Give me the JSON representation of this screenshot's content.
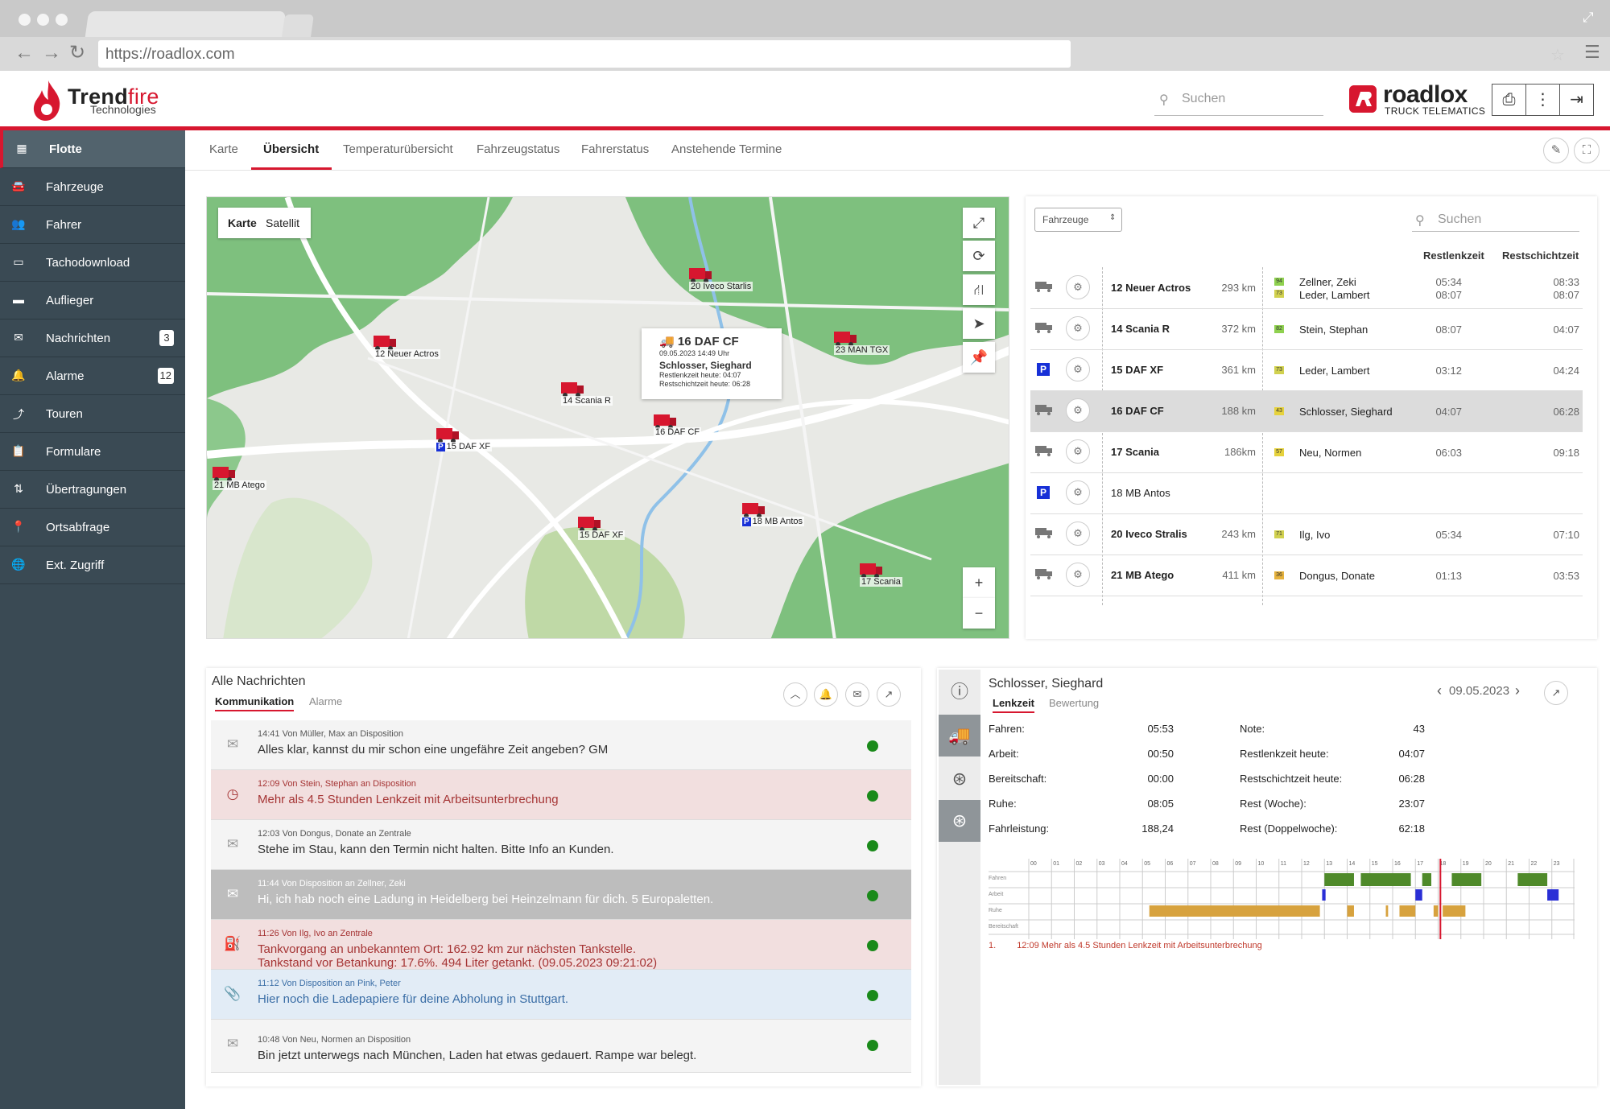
{
  "browser": {
    "url": "https://roadlox.com"
  },
  "header": {
    "brand_name_1": "Trend",
    "brand_name_2": "fire",
    "brand_sub": "Technologies",
    "search_placeholder": "Suchen",
    "product_name": "roadlox",
    "product_sub": "TRUCK TELEMATICS"
  },
  "sidebar": {
    "items": [
      {
        "label": "Flotte",
        "icon": "dashboard-icon"
      },
      {
        "label": "Fahrzeuge",
        "icon": "car-icon"
      },
      {
        "label": "Fahrer",
        "icon": "users-icon"
      },
      {
        "label": "Tachodownload",
        "icon": "card-icon"
      },
      {
        "label": "Auflieger",
        "icon": "trailer-icon"
      },
      {
        "label": "Nachrichten",
        "icon": "envelope-icon",
        "badge": "3"
      },
      {
        "label": "Alarme",
        "icon": "bell-icon",
        "badge": "12"
      },
      {
        "label": "Touren",
        "icon": "route-icon"
      },
      {
        "label": "Formulare",
        "icon": "clipboard-icon"
      },
      {
        "label": "Übertragungen",
        "icon": "transfer-icon"
      },
      {
        "label": "Ortsabfrage",
        "icon": "pin-icon"
      },
      {
        "label": "Ext. Zugriff",
        "icon": "globe-icon"
      }
    ]
  },
  "tabs": [
    "Karte",
    "Übersicht",
    "Temperaturübersicht",
    "Fahrzeugstatus",
    "Fahrerstatus",
    "Anstehende Termine"
  ],
  "active_tab": "Übersicht",
  "map": {
    "type_buttons": [
      "Karte",
      "Satellit"
    ],
    "markers": [
      {
        "label": "20 Iveco Starlis"
      },
      {
        "label": "12 Neuer Actros"
      },
      {
        "label": "23 MAN TGX"
      },
      {
        "label": "14 Scania R"
      },
      {
        "label": "16 DAF CF"
      },
      {
        "label": "15 DAF XF",
        "parked": true
      },
      {
        "label": "21 MB Atego"
      },
      {
        "label": "15 DAF XF"
      },
      {
        "label": "18 MB Antos",
        "parked": true
      },
      {
        "label": "17 Scania"
      }
    ],
    "popup": {
      "title": "16 DAF CF",
      "datetime": "09.05.2023 14:49 Uhr",
      "driver": "Schlosser, Sieghard",
      "line1": "Restlenkzeit heute: 04:07",
      "line2": "Restschichtzeit heute: 06:28"
    }
  },
  "vehicles": {
    "select_value": "Fahrzeuge",
    "search_placeholder": "Suchen",
    "col_restlenk": "Restlenkzeit",
    "col_restschicht": "Restschichtzeit",
    "rows": [
      {
        "name": "12 Neuer Actros",
        "km": "293 km",
        "drivers": [
          "Zellner, Zeki",
          "Leder, Lambert"
        ],
        "chips": [
          "94",
          "73"
        ],
        "lenk": [
          "05:34",
          "08:07"
        ],
        "schicht": [
          "08:33",
          "08:07"
        ],
        "status": "truck"
      },
      {
        "name": "14 Scania R",
        "km": "372 km",
        "drivers": [
          "Stein, Stephan"
        ],
        "chips": [
          "82"
        ],
        "lenk": [
          "08:07"
        ],
        "schicht": [
          "04:07"
        ],
        "status": "truck"
      },
      {
        "name": "15 DAF XF",
        "km": "361 km",
        "drivers": [
          "Leder, Lambert"
        ],
        "chips": [
          "73"
        ],
        "lenk": [
          "03:12"
        ],
        "schicht": [
          "04:24"
        ],
        "status": "parked"
      },
      {
        "name": "16 DAF CF",
        "km": "188 km",
        "drivers": [
          "Schlosser, Sieghard"
        ],
        "chips": [
          "43"
        ],
        "lenk": [
          "04:07"
        ],
        "schicht": [
          "06:28"
        ],
        "status": "truck",
        "selected": true
      },
      {
        "name": "17 Scania",
        "km": "186km",
        "drivers": [
          "Neu, Normen"
        ],
        "chips": [
          "57"
        ],
        "lenk": [
          "06:03"
        ],
        "schicht": [
          "09:18"
        ],
        "status": "truck"
      },
      {
        "name": "18 MB Antos",
        "km": "",
        "drivers": [],
        "chips": [],
        "lenk": [],
        "schicht": [],
        "status": "parked"
      },
      {
        "name": "20 Iveco Stralis",
        "km": "243 km",
        "drivers": [
          "Ilg, Ivo"
        ],
        "chips": [
          "71"
        ],
        "lenk": [
          "05:34"
        ],
        "schicht": [
          "07:10"
        ],
        "status": "truck"
      },
      {
        "name": "21 MB Atego",
        "km": "411 km",
        "drivers": [
          "Dongus, Donate"
        ],
        "chips": [
          "36"
        ],
        "lenk": [
          "01:13"
        ],
        "schicht": [
          "03:53"
        ],
        "status": "truck"
      }
    ]
  },
  "messages": {
    "title": "Alle Nachrichten",
    "tab_active": "Kommunikation",
    "tab_other": "Alarme",
    "rows": [
      {
        "meta": "14:41 Von Müller, Max an Disposition",
        "text": "Alles klar, kannst du mir schon eine ungefähre Zeit angeben? GM",
        "kind": "normal",
        "icon": "envelope-icon"
      },
      {
        "meta": "12:09 Von Stein, Stephan an Disposition",
        "text": "Mehr als 4.5 Stunden Lenkzeit mit Arbeitsunterbrechung",
        "kind": "alarm",
        "icon": "clock-icon"
      },
      {
        "meta": "12:03 Von Dongus, Donate an Zentrale",
        "text": "Stehe im Stau, kann den Termin nicht halten. Bitte Info an Kunden.",
        "kind": "normal",
        "icon": "envelope-icon"
      },
      {
        "meta": "11:44 Von Disposition an Zellner, Zeki",
        "text": "Hi, ich hab noch eine Ladung in Heidelberg bei Heinzelmann für dich. 5 Europaletten.",
        "kind": "sel",
        "icon": "envelope-icon"
      },
      {
        "meta": "11:26 Von Ilg, Ivo an Zentrale",
        "text": "Tankvorgang an unbekanntem Ort: 162.92 km zur nächsten Tankstelle.",
        "text2": "Tankstand vor Betankung: 17.6%. 494 Liter getankt. (09.05.2023 09:21:02)",
        "kind": "alarm",
        "icon": "fuel-icon"
      },
      {
        "meta": "11:12 Von Disposition an Pink, Peter",
        "text": "Hier noch die Ladepapiere für deine Abholung in Stuttgart.",
        "kind": "info",
        "icon": "paperclip-icon"
      },
      {
        "meta": "10:48 Von Neu, Normen an Disposition",
        "text": "Bin jetzt unterwegs nach München, Laden hat etwas gedauert. Rampe war belegt.",
        "kind": "normal",
        "icon": "envelope-icon"
      }
    ]
  },
  "driver": {
    "name": "Schlosser, Sieghard",
    "tab_active": "Lenkzeit",
    "tab_other": "Bewertung",
    "date": "09.05.2023",
    "left": [
      {
        "label": "Fahren:",
        "value": "05:53"
      },
      {
        "label": "Arbeit:",
        "value": "00:50"
      },
      {
        "label": "Bereitschaft:",
        "value": "00:00"
      },
      {
        "label": "Ruhe:",
        "value": "08:05"
      },
      {
        "label": "Fahrleistung:",
        "value": "188,24"
      }
    ],
    "right": [
      {
        "label": "Note:",
        "value": "43"
      },
      {
        "label": "Restlenkzeit heute:",
        "value": "04:07"
      },
      {
        "label": "Restschichtzeit heute:",
        "value": "06:28"
      },
      {
        "label": "Rest (Woche):",
        "value": "23:07"
      },
      {
        "label": "Rest (Doppelwoche):",
        "value": "62:18"
      }
    ],
    "gantt_rows": [
      "Fahren",
      "Arbeit",
      "Ruhe",
      "Bereitschaft"
    ],
    "gantt_hours": [
      "00",
      "01",
      "02",
      "03",
      "04",
      "05",
      "06",
      "07",
      "08",
      "09",
      "10",
      "11",
      "12",
      "13",
      "14",
      "15",
      "16",
      "17",
      "18",
      "19",
      "20",
      "21",
      "22",
      "23"
    ],
    "gantt_note_num": "1.",
    "gantt_note": "12:09 Mehr als 4.5 Stunden Lenkzeit mit Arbeitsunterbrechung"
  },
  "colors": {
    "accent": "#d7172f",
    "sidebar": "#3a4a54",
    "fahren": "#4f8a2a",
    "arbeit": "#2a2fd6",
    "ruhe": "#d7a23e"
  }
}
